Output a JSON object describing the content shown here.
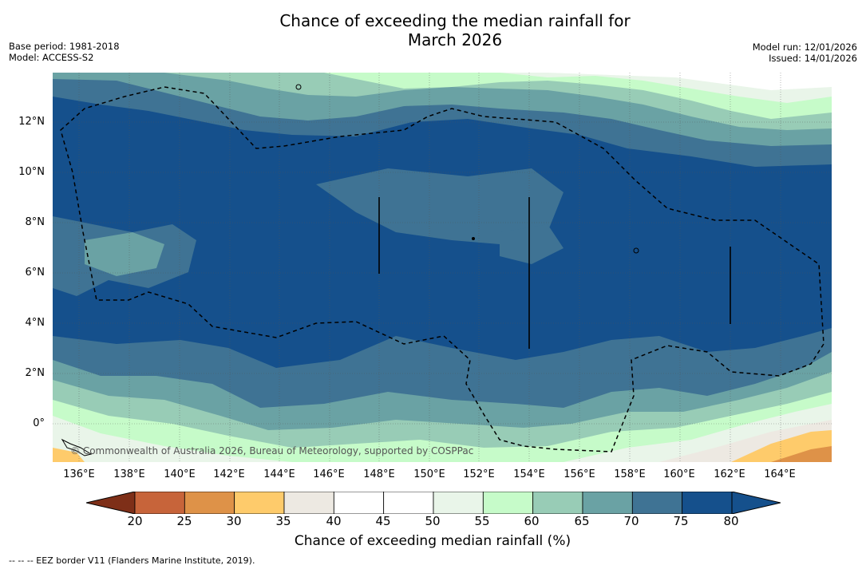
{
  "header": {
    "title_line1": "Chance of exceeding the median rainfall for",
    "title_line2": "March 2026",
    "base_period": "Base period: 1981-2018",
    "model": "Model: ACCESS-S2",
    "model_run": "Model run: 12/01/2026",
    "issued": "Issued: 14/01/2026"
  },
  "map": {
    "lat_labels": [
      "12°N",
      "10°N",
      "8°N",
      "6°N",
      "4°N",
      "2°N",
      "0°"
    ],
    "lon_labels": [
      "136°E",
      "138°E",
      "140°E",
      "142°E",
      "144°E",
      "146°E",
      "148°E",
      "150°E",
      "152°E",
      "154°E",
      "156°E",
      "158°E",
      "160°E",
      "162°E",
      "164°E"
    ],
    "copyright": "© Commonwealth of Australia 2026, Bureau of Meteorology, supported by COSPPac"
  },
  "legend": {
    "ticks": [
      "20",
      "25",
      "30",
      "35",
      "40",
      "45",
      "50",
      "55",
      "60",
      "65",
      "70",
      "75",
      "80"
    ],
    "colors": [
      "#a9452a",
      "#c7643a",
      "#de9248",
      "#fecb6b",
      "#ede9e2",
      "#ffffff",
      "#ffffff",
      "#e9f5e9",
      "#c6fbc9",
      "#98ccb6",
      "#6aa2a4",
      "#3f7394",
      "#15508c"
    ],
    "label": "Chance of exceeding median rainfall (%)"
  },
  "footer": {
    "eez_note": "--  --  -- EEZ border V11 (Flanders Marine Institute, 2019)."
  }
}
